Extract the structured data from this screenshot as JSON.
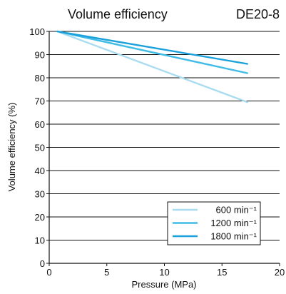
{
  "chart_data": {
    "type": "line",
    "title": "Volume efficiency",
    "model": "DE20-8",
    "xlabel": "Pressure (MPa)",
    "ylabel": "Volume efficiency (%)",
    "xlim": [
      0,
      20
    ],
    "ylim": [
      0,
      100
    ],
    "xticks": [
      0,
      5,
      10,
      15,
      20
    ],
    "yticks": [
      0,
      10,
      20,
      30,
      40,
      50,
      60,
      70,
      80,
      90,
      100
    ],
    "grid": "horizontal",
    "legend_position": "bottom-right",
    "series": [
      {
        "name": "600 min⁻¹",
        "color": "#a9dcef",
        "x": [
          0.7,
          17.2
        ],
        "y": [
          100,
          69.5
        ]
      },
      {
        "name": "1200 min⁻¹",
        "color": "#3fbbe7",
        "x": [
          0.7,
          17.2
        ],
        "y": [
          100,
          82
        ]
      },
      {
        "name": "1800 min⁻¹",
        "color": "#1aa0db",
        "x": [
          0.7,
          17.2
        ],
        "y": [
          100,
          86
        ]
      }
    ]
  }
}
